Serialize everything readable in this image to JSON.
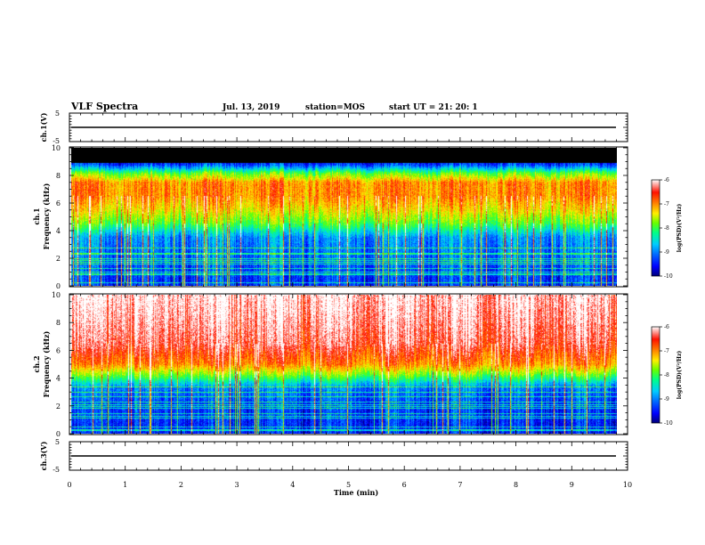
{
  "header": {
    "title": "VLF Spectra",
    "date": "Jul. 13, 2019",
    "station": "station=MOS",
    "start_time": "start UT =  21: 20: 1"
  },
  "colors": {
    "scale": [
      "#00007a",
      "#0000ff",
      "#0066ff",
      "#00ccff",
      "#00ff88",
      "#66ff00",
      "#ffee00",
      "#ff8800",
      "#ff1100",
      "#ffffff"
    ],
    "saturated": "#000000"
  },
  "chart_data": [
    {
      "type": "line",
      "name": "channel-1-waveform",
      "ylabel": "ch.1(V)",
      "ylim": [
        -5,
        5
      ],
      "yticks": [
        "5",
        "-5"
      ],
      "xlim": [
        0,
        10
      ],
      "approx_level": 0
    },
    {
      "type": "heatmap",
      "name": "channel-1-spectrogram",
      "ylabel": "ch.1\nFrequency (kHz)",
      "xlim": [
        0,
        10
      ],
      "data_xmax": 9.85,
      "ylim": [
        0,
        10
      ],
      "yticks": [
        "0",
        "2",
        "4",
        "6",
        "8",
        "10"
      ],
      "colorbar": {
        "label": "log(PSD)(V²/Hz)",
        "range": [
          -10,
          -6
        ],
        "ticks": [
          "-6",
          "-7",
          "-8",
          "-9",
          "-10"
        ]
      },
      "profile": [
        {
          "f": 0.5,
          "v": -9.3
        },
        {
          "f": 2.0,
          "v": -9.1
        },
        {
          "f": 3.5,
          "v": -8.9
        },
        {
          "f": 4.5,
          "v": -7.9
        },
        {
          "f": 5.5,
          "v": -7.3
        },
        {
          "f": 6.5,
          "v": -6.9
        },
        {
          "f": 7.5,
          "v": -6.9
        },
        {
          "f": 8.2,
          "v": -7.9
        },
        {
          "f": 8.8,
          "v": -9.3
        }
      ],
      "saturated_above_khz": 8.9
    },
    {
      "type": "heatmap",
      "name": "channel-2-spectrogram",
      "ylabel": "ch.2\nFrequency (kHz)",
      "xlim": [
        0,
        10
      ],
      "data_xmax": 9.85,
      "ylim": [
        0,
        10
      ],
      "yticks": [
        "0",
        "2",
        "4",
        "6",
        "8",
        "10"
      ],
      "colorbar": {
        "label": "log(PSD)(V²/Hz)",
        "range": [
          -10,
          -6
        ],
        "ticks": [
          "-6",
          "-7",
          "-8",
          "-9",
          "-10"
        ]
      },
      "profile": [
        {
          "f": 0.5,
          "v": -9.4
        },
        {
          "f": 2.0,
          "v": -9.3
        },
        {
          "f": 3.3,
          "v": -9.0
        },
        {
          "f": 4.2,
          "v": -7.8
        },
        {
          "f": 5.0,
          "v": -6.9
        },
        {
          "f": 6.5,
          "v": -6.3
        },
        {
          "f": 8.5,
          "v": -6.1
        },
        {
          "f": 10.0,
          "v": -6.0
        }
      ]
    },
    {
      "type": "line",
      "name": "channel-3-waveform",
      "ylabel": "ch.3(V)",
      "ylim": [
        -5,
        5
      ],
      "yticks": [
        "5",
        "-5"
      ],
      "xlim": [
        0,
        10
      ],
      "approx_level": 0
    }
  ],
  "xaxis": {
    "label": "Time (min)",
    "range": [
      0,
      10
    ],
    "ticks": [
      "0",
      "1",
      "2",
      "3",
      "4",
      "5",
      "6",
      "7",
      "8",
      "9",
      "10"
    ]
  }
}
